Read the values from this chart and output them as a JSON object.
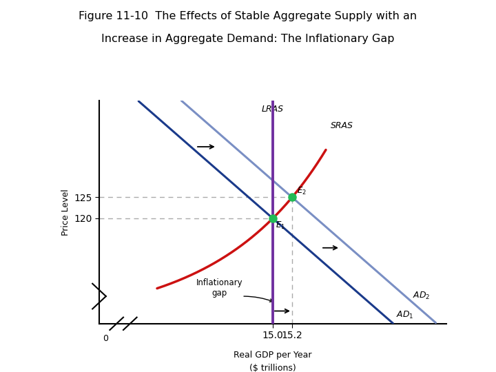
{
  "title_line1": "Figure 11-10  The Effects of Stable Aggregate Supply with an",
  "title_line2": "Increase in Aggregate Demand: The Inflationary Gap",
  "xlabel_line1": "Real GDP per Year",
  "xlabel_line2": "($ trillions)",
  "ylabel": "Price Level",
  "xlim": [
    13.2,
    16.8
  ],
  "ylim": [
    95,
    148
  ],
  "lras_x": 15.0,
  "e1": [
    15.0,
    120
  ],
  "e2": [
    15.2,
    125
  ],
  "ad1_color": "#1a3a8a",
  "ad2_color": "#7a8fc4",
  "sras_color": "#cc1111",
  "lras_color": "#7030a0",
  "dot_color": "#22bb55",
  "background": "#ffffff",
  "ad1_slope": -20.0,
  "ad2_slope": -20.0,
  "sras_k": 2.5,
  "sras_a": 75,
  "sras_b": 12,
  "sras_x0": 14.2
}
